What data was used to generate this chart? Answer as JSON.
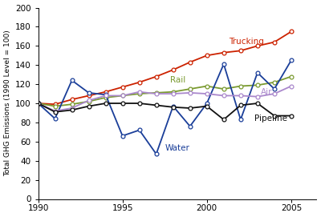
{
  "years": [
    1990,
    1991,
    1992,
    1993,
    1994,
    1995,
    1996,
    1997,
    1998,
    1999,
    2000,
    2001,
    2002,
    2003,
    2004,
    2005
  ],
  "trucking": [
    100,
    99,
    104,
    108,
    112,
    117,
    122,
    128,
    135,
    143,
    150,
    153,
    155,
    160,
    164,
    175
  ],
  "rail": [
    100,
    97,
    99,
    102,
    106,
    108,
    110,
    111,
    112,
    115,
    118,
    115,
    118,
    119,
    122,
    128
  ],
  "water": [
    100,
    84,
    124,
    111,
    109,
    66,
    72,
    47,
    97,
    76,
    100,
    141,
    83,
    132,
    115,
    145
  ],
  "air": [
    100,
    92,
    95,
    103,
    108,
    108,
    112,
    110,
    110,
    111,
    110,
    108,
    108,
    107,
    110,
    118
  ],
  "pipeline": [
    100,
    91,
    93,
    97,
    100,
    100,
    100,
    98,
    96,
    95,
    97,
    83,
    98,
    100,
    87,
    87
  ],
  "trucking_color": "#cc2200",
  "rail_color": "#7a9a30",
  "water_color": "#1a3e99",
  "air_color": "#aa88cc",
  "pipeline_color": "#111111",
  "bg_color": "#ffffff",
  "ylabel": "Total GHG Emissions (1990 Level = 100)",
  "xlim": [
    1990,
    2005
  ],
  "ylim": [
    0,
    200
  ],
  "yticks": [
    0,
    20,
    40,
    60,
    80,
    100,
    120,
    140,
    160,
    180,
    200
  ],
  "xticks": [
    1990,
    1995,
    2000,
    2005
  ],
  "label_trucking": "Trucking",
  "label_rail": "Rail",
  "label_water": "Water",
  "label_air": "Air",
  "label_pipeline": "Pipeline",
  "marker": "o",
  "markersize": 3.5,
  "linewidth": 1.3,
  "label_fontsize": 7.5
}
